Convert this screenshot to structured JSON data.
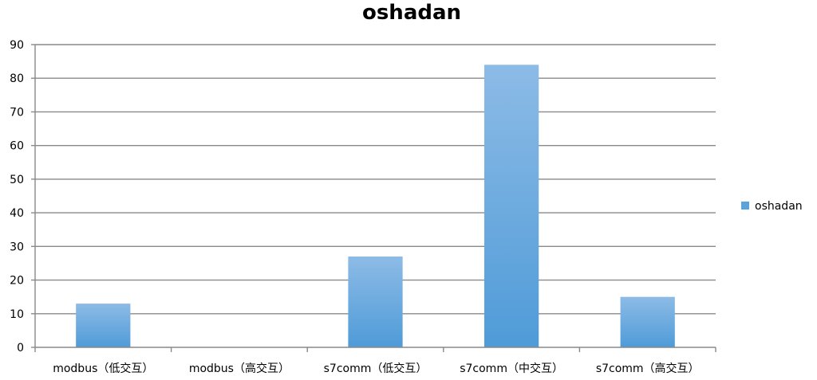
{
  "chart_data": {
    "type": "bar",
    "title": "oshadan",
    "categories": [
      "modbus（低交互）",
      "modbus（高交互）",
      "s7comm（低交互）",
      "s7comm（中交互）",
      "s7comm（高交互）"
    ],
    "series": [
      {
        "name": "oshadan",
        "values": [
          13,
          0,
          27,
          84,
          15
        ],
        "color": "#5ba3dc"
      }
    ],
    "xlabel": "",
    "ylabel": "",
    "ylim": [
      0,
      90
    ],
    "yticks": [
      0,
      10,
      20,
      30,
      40,
      50,
      60,
      70,
      80,
      90
    ],
    "grid": true,
    "legend": "right",
    "colors": {
      "bar_top": "#8dbbe6",
      "bar_bottom": "#4f9bd8",
      "grid": "#898989",
      "axis": "#898989"
    }
  }
}
